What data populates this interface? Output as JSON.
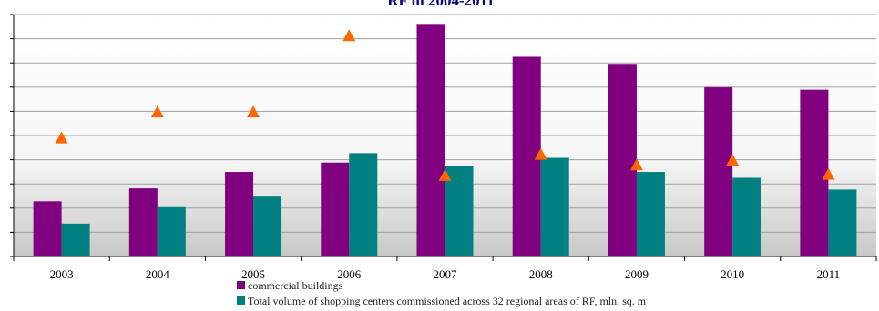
{
  "chart_data": {
    "type": "bar",
    "title": "RF in 2004-2011",
    "categories": [
      "2003",
      "2004",
      "2005",
      "2006",
      "2007",
      "2008",
      "2009",
      "2010",
      "2011"
    ],
    "series": [
      {
        "name": "commercial buildings",
        "kind": "bar",
        "color": "#800080",
        "values": [
          1.35,
          1.9,
          2.6,
          3.0,
          8.9,
          7.5,
          7.2,
          6.2,
          6.1
        ]
      },
      {
        "name": "Total volume of shopping centers commissioned across 32 regional areas of RF, mln. sq. m",
        "kind": "bar",
        "color": "#008080",
        "values": [
          0.4,
          1.1,
          1.55,
          3.4,
          2.85,
          3.2,
          2.6,
          2.35,
          1.85
        ]
      },
      {
        "kind": "marker",
        "marker": "triangle",
        "color": "#ff6600",
        "values": [
          4.05,
          5.15,
          5.15,
          8.4,
          2.45,
          3.35,
          2.9,
          3.1,
          2.5
        ]
      }
    ],
    "ylim": [
      -1,
      9.3
    ],
    "yticks": 11,
    "grid": true,
    "legend_position": "bottom"
  }
}
